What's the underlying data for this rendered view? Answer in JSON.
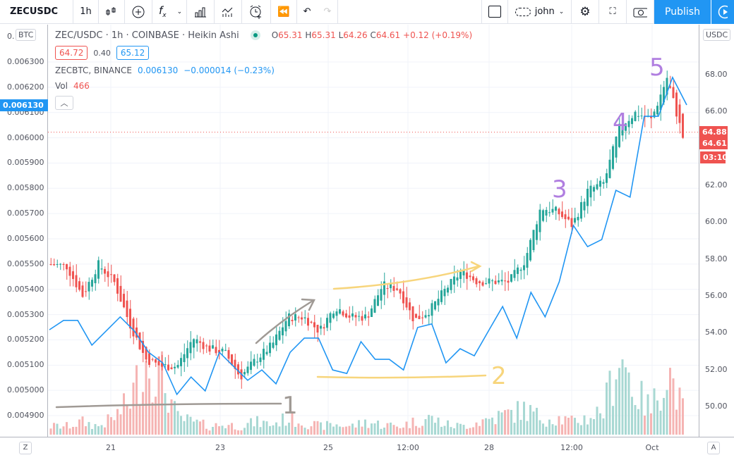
{
  "toolbar": {
    "symbol": "ZECUSDC",
    "interval": "1h",
    "user": "john",
    "publish": "Publish",
    "icons": [
      "candles-icon",
      "add-compare-icon",
      "indicators-icon",
      "chevron-down-icon",
      "bars-icon",
      "templates-icon",
      "alert-icon",
      "replay-icon",
      "undo-icon",
      "redo-icon",
      "square-icon",
      "cloud-icon",
      "chevron-down-icon",
      "gear-icon",
      "fullscreen-icon",
      "camera-icon",
      "play-icon"
    ]
  },
  "legend": {
    "title": "ZEC/USDC · 1h · COINBASE · Heikin Ashi",
    "o_label": "O",
    "o": "65.31",
    "h_label": "H",
    "h": "65.31",
    "l_label": "L",
    "l": "64.26",
    "c_label": "C",
    "c": "64.61",
    "change": "+0.12 (+0.19%)",
    "bid": "64.72",
    "spread": "0.40",
    "ask": "65.12",
    "compare_name": "ZECBTC, BINANCE",
    "compare_value": "0.006130",
    "compare_change": "−0.000014 (−0.23%)",
    "vol_label": "Vol",
    "vol": "466"
  },
  "left_axis": {
    "unit": "BTC",
    "ticks": [
      "0.006300",
      "0.006200",
      "0.006100",
      "0.006000",
      "0.005900",
      "0.005800",
      "0.005700",
      "0.005600",
      "0.005500",
      "0.005400",
      "0.005300",
      "0.005200",
      "0.005100",
      "0.005000",
      "0.004900"
    ],
    "current": "0.006130"
  },
  "right_axis": {
    "unit": "USDC",
    "ticks": [
      "68.00",
      "66.00",
      "62.00",
      "60.00",
      "58.00",
      "56.00",
      "54.00",
      "52.00",
      "50.00"
    ],
    "last_price": "64.88",
    "close_price": "64.61",
    "countdown": "03:10"
  },
  "time_axis": {
    "ticks": [
      "21",
      "23",
      "25",
      "12:00",
      "28",
      "12:00",
      "Oct"
    ],
    "left_button": "Z",
    "right_button": "A"
  },
  "annotations": [
    "1",
    "2",
    "3",
    "4",
    "5"
  ],
  "colors": {
    "up": "#26a69a",
    "down": "#ef5350",
    "compare": "#2196f3",
    "accent": "#2196f3",
    "annotation_numbers": "#b07ee0",
    "arrow_gray": "#a09a95",
    "arrow_yellow": "#f7d57c"
  },
  "chart_data": {
    "type": "candlestick+line",
    "style": "Heikin Ashi",
    "symbol": "ZEC/USDC",
    "ylabel_right": "USDC",
    "ylabel_left": "BTC",
    "ylim_right": [
      48.5,
      70
    ],
    "ylim_left": [
      0.00484,
      0.00645
    ],
    "x_ticks": [
      "21",
      "23",
      "25",
      "12:00",
      "28",
      "12:00",
      "Oct"
    ],
    "ha_close_usdc": [
      57.72,
      57.61,
      56.0,
      57.72,
      56.77,
      54.47,
      52.56,
      52.18,
      52.18,
      53.71,
      53.14,
      52.94,
      51.6,
      52.56,
      53.33,
      54.85,
      54.85,
      54.09,
      55.43,
      54.85,
      54.85,
      56.57,
      56.38,
      54.66,
      55.24,
      56.38,
      57.34,
      56.77,
      56.77,
      56.77,
      57.91,
      60.78,
      60.59,
      59.82,
      61.73,
      62.12,
      65.17,
      65.94,
      65.55,
      67.85,
      64.61
    ],
    "zecbtc": [
      0.00524,
      0.005277,
      0.005277,
      0.005179,
      0.005235,
      0.005291,
      0.005235,
      0.005151,
      0.005109,
      0.004984,
      0.005053,
      0.004998,
      0.005151,
      0.005095,
      0.00504,
      0.005081,
      0.005026,
      0.005151,
      0.005207,
      0.005207,
      0.005081,
      0.005067,
      0.005193,
      0.005123,
      0.005123,
      0.005081,
      0.005249,
      0.005263,
      0.005109,
      0.005165,
      0.005137,
      0.005235,
      0.005332,
      0.005207,
      0.005388,
      0.005291,
      0.00543,
      0.005653,
      0.005569,
      0.005597,
      0.005792,
      0.005765,
      0.006085,
      0.006085,
      0.006239,
      0.00613
    ],
    "volume_relative": [
      0.1,
      0.1,
      0.15,
      0.1,
      0.2,
      0.4,
      0.9,
      0.7,
      0.2,
      0.15,
      0.1,
      0.12,
      0.1,
      0.15,
      0.12,
      0.2,
      0.15,
      0.1,
      0.12,
      0.1,
      0.15,
      0.12,
      0.1,
      0.15,
      0.2,
      0.12,
      0.1,
      0.15,
      0.2,
      0.25,
      0.3,
      0.2,
      0.2,
      0.15,
      0.2,
      0.3,
      1.0,
      0.5,
      0.3,
      0.8,
      0.3
    ]
  }
}
